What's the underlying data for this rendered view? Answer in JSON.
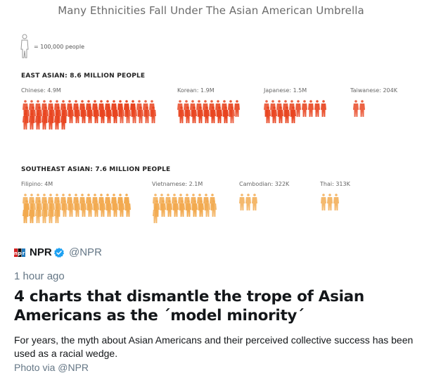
{
  "chart_data": {
    "type": "pictogram",
    "title": "Many Ethnicities Fall Under The Asian American Umbrella",
    "legend": "= 100,000 people",
    "unit_people": 100000,
    "colors": {
      "east_asian": "#e8431e",
      "southeast_asian": "#f2a94e",
      "legend_icon": "#999999"
    },
    "sections": [
      {
        "title": "EAST ASIAN: 8.6 MILLION PEOPLE",
        "groups": [
          {
            "label": "Chinese: 4.9M",
            "name": "Chinese",
            "value": 4900000
          },
          {
            "label": "Korean: 1.9M",
            "name": "Korean",
            "value": 1900000
          },
          {
            "label": "Japanese: 1.5M",
            "name": "Japanese",
            "value": 1500000
          },
          {
            "label": "Taiwanese: 204K",
            "name": "Taiwanese",
            "value": 204000
          }
        ]
      },
      {
        "title": "SOUTHEAST ASIAN: 7.6 MILLION PEOPLE",
        "groups": [
          {
            "label": "Filipino: 4M",
            "name": "Filipino",
            "value": 4000000
          },
          {
            "label": "Vietnamese: 2.1M",
            "name": "Vietnamese",
            "value": 2100000
          },
          {
            "label": "Cambodian: 322K",
            "name": "Cambodian",
            "value": 322000
          },
          {
            "label": "Thai: 313K",
            "name": "Thai",
            "value": 313000
          }
        ]
      }
    ]
  },
  "tweet": {
    "author": "NPR",
    "handle": "@NPR",
    "logo_icon": "npr-logo-icon",
    "verified_icon": "verified-badge-icon",
    "time": "1 hour ago",
    "headline": "4 charts that dismantle the trope of Asian Americans as the ´model minority´",
    "description": "For years, the myth about Asian Americans and their perceived collective success has been used as a racial wedge.",
    "photo_credit": "Photo via @NPR",
    "colors": {
      "text": "#14171a",
      "muted": "#657786",
      "verified": "#1da1f2"
    }
  }
}
